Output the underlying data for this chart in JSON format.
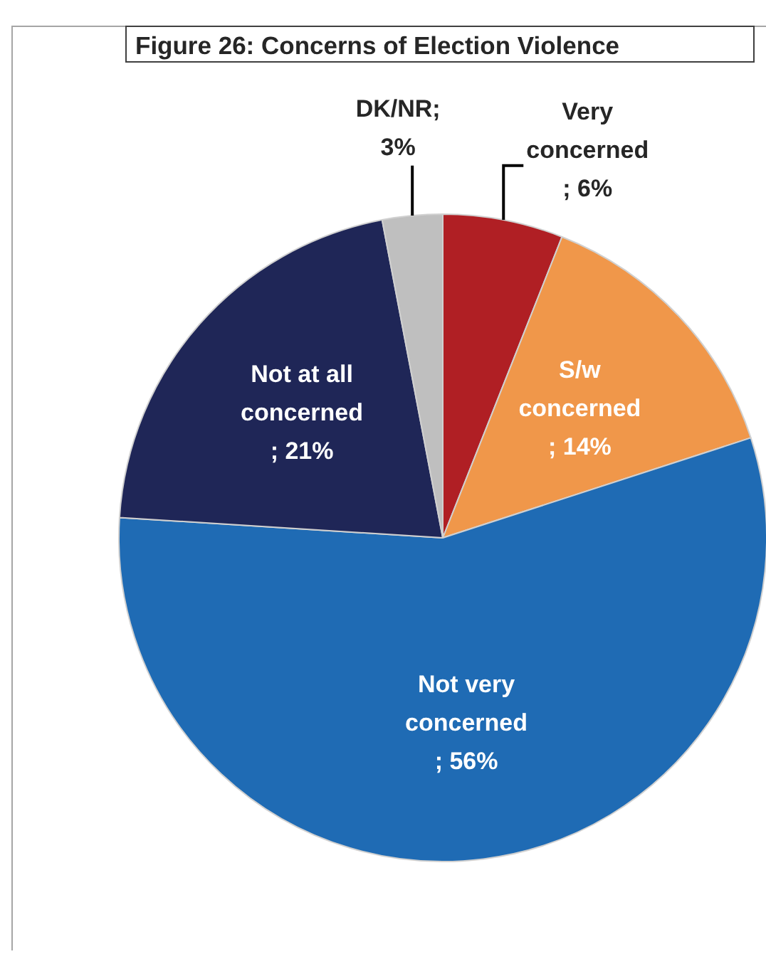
{
  "chart_data": {
    "type": "pie",
    "title": "Figure 26: Concerns of Election Violence",
    "categories": [
      "Very concerned",
      "S/w concerned",
      "Not very concerned",
      "Not at all concerned",
      "DK/NR"
    ],
    "values": [
      6,
      14,
      56,
      21,
      3
    ],
    "value_labels": [
      "; 6%",
      "; 14%",
      "; 56%",
      "; 21%",
      "; 3%"
    ],
    "colors": [
      "#b01f24",
      "#f0974a",
      "#1f6bb4",
      "#1f2657",
      "#bfbfbf"
    ],
    "legend": false
  }
}
